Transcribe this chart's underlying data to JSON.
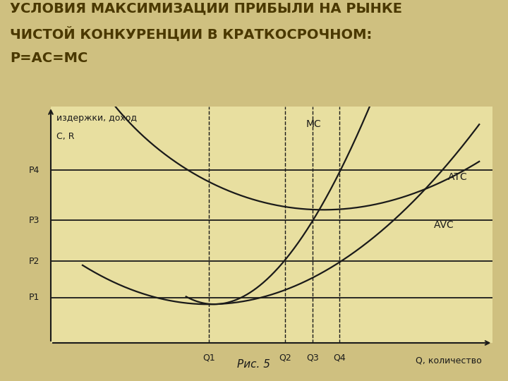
{
  "title_line1": "УСЛОВИЯ МАКСИМИЗАЦИИ ПРИБЫЛИ НА РЫНКЕ",
  "title_line2": "ЧИСТОЙ КОНКУРЕНЦИИ В КРАТКОСРОЧНОМ:",
  "title_line3": "Р=АС=МС",
  "background_color": "#cfc080",
  "chart_bg_color": "#e8dfa0",
  "ylabel_top": "издержки, доход",
  "ylabel_bottom": "С, R",
  "xlabel": "Q, количество",
  "caption": "Рис. 5",
  "y_labels": [
    "P1",
    "P2",
    "P3",
    "P4"
  ],
  "y_values": [
    1.0,
    1.8,
    2.7,
    3.8
  ],
  "x_labels": [
    "Q1",
    "Q2",
    "Q3",
    "Q4"
  ],
  "x_values": [
    3.5,
    5.2,
    5.8,
    6.4
  ],
  "line_color": "#1a1a1a",
  "title_color": "#4a3800",
  "title_fontsize": 14,
  "axis_label_fontsize": 9,
  "tick_label_fontsize": 9,
  "caption_fontsize": 11
}
